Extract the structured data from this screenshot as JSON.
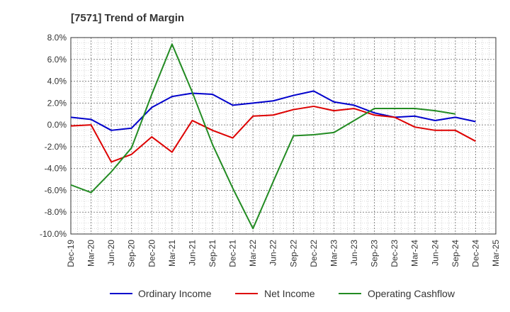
{
  "chart_data": {
    "type": "line",
    "title": "[7571]  Trend of Margin",
    "xlabel": "",
    "ylabel": "",
    "categories": [
      "Dec-19",
      "Mar-20",
      "Jun-20",
      "Sep-20",
      "Dec-20",
      "Mar-21",
      "Jun-21",
      "Sep-21",
      "Dec-21",
      "Mar-22",
      "Jun-22",
      "Sep-22",
      "Dec-22",
      "Mar-23",
      "Jun-23",
      "Sep-23",
      "Dec-23",
      "Mar-24",
      "Jun-24",
      "Sep-24",
      "Dec-24",
      "Mar-25"
    ],
    "y_ticks": [
      "8.0%",
      "6.0%",
      "4.0%",
      "2.0%",
      "0.0%",
      "-2.0%",
      "-4.0%",
      "-6.0%",
      "-8.0%",
      "-10.0%"
    ],
    "ylim": [
      -10,
      8
    ],
    "grid": true,
    "legend_position": "bottom",
    "series": [
      {
        "name": "Ordinary Income",
        "color": "#0000cc",
        "values": [
          0.7,
          0.5,
          -0.5,
          -0.3,
          1.6,
          2.6,
          2.9,
          2.8,
          1.8,
          2.0,
          2.2,
          2.7,
          3.1,
          2.1,
          1.8,
          1.1,
          0.7,
          0.8,
          0.4,
          0.7,
          0.3,
          null
        ]
      },
      {
        "name": "Net Income",
        "color": "#dd0000",
        "values": [
          -0.1,
          0.0,
          -3.4,
          -2.7,
          -1.1,
          -2.5,
          0.4,
          -0.5,
          -1.2,
          0.8,
          0.9,
          1.4,
          1.7,
          1.3,
          1.5,
          0.9,
          0.7,
          -0.2,
          -0.5,
          -0.5,
          -1.5,
          null
        ]
      },
      {
        "name": "Operating Cashflow",
        "color": "#228b22",
        "values": [
          -5.5,
          -6.2,
          -4.3,
          -2.1,
          2.8,
          7.4,
          3.0,
          -1.8,
          -5.8,
          -9.5,
          -5.2,
          -1.0,
          -0.9,
          -0.7,
          0.4,
          1.5,
          1.5,
          1.5,
          1.3,
          1.0,
          null,
          null
        ]
      }
    ]
  }
}
